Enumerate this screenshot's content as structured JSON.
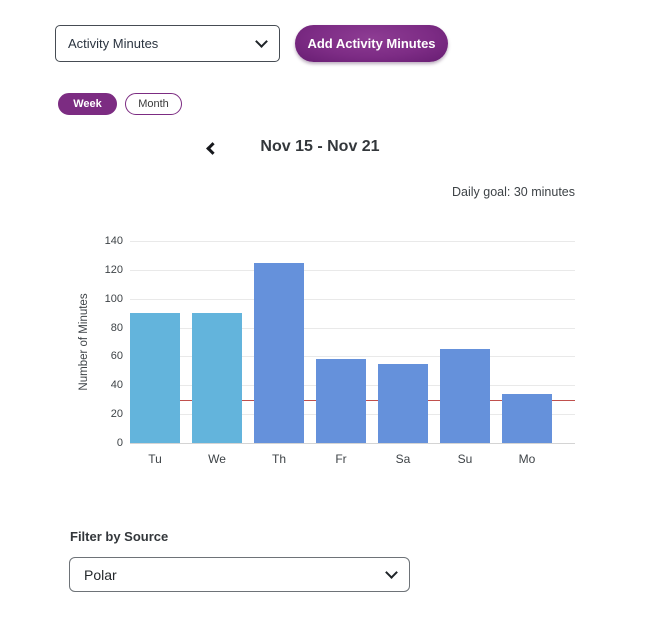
{
  "controls": {
    "metric_select": {
      "value": "Activity Minutes"
    },
    "add_button_label": "Add Activity Minutes",
    "range_tabs": {
      "week": "Week",
      "month": "Month",
      "selected": "Week"
    }
  },
  "period": {
    "title": "Nov 15 - Nov 21"
  },
  "goal_text": "Daily goal: 30 minutes",
  "chart_data": {
    "type": "bar",
    "categories": [
      "Tu",
      "We",
      "Th",
      "Fr",
      "Sa",
      "Su",
      "Mo"
    ],
    "values": [
      90,
      90,
      125,
      58,
      55,
      65,
      34
    ],
    "bar_colors": [
      "#63b4dc",
      "#63b4dc",
      "#6591db",
      "#6591db",
      "#6591db",
      "#6591db",
      "#6591db"
    ],
    "title": "",
    "xlabel": "",
    "ylabel": "Number of Minutes",
    "ylim": [
      0,
      140
    ],
    "ytick_step": 20,
    "grid": true,
    "legend": "none",
    "goal_line": {
      "value": 30,
      "color": "#c0504d",
      "label": "Daily goal"
    }
  },
  "filter": {
    "label": "Filter by Source",
    "source_select": {
      "value": "Polar"
    }
  },
  "colors": {
    "brand_purple": "#7c2c82",
    "bar_blue_light": "#63b4dc",
    "bar_blue_periwinkle": "#6591db",
    "goal_red": "#c0504d"
  }
}
